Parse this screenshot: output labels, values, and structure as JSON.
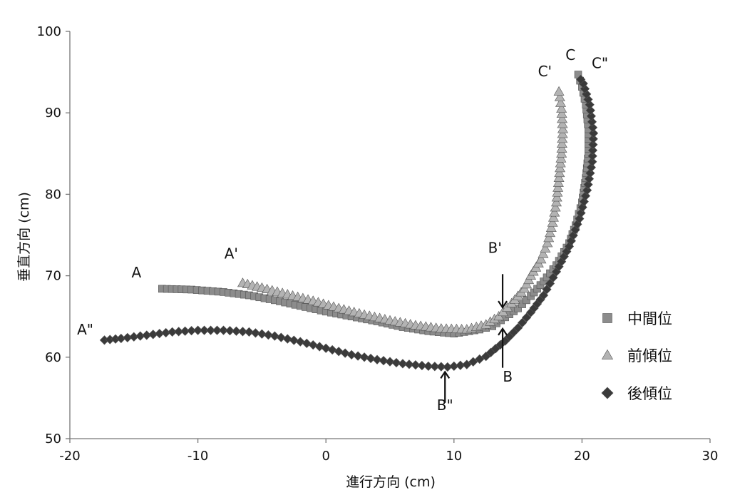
{
  "chart_data": {
    "type": "scatter",
    "title": "",
    "xlabel": "進行方向 (cm)",
    "ylabel": "垂直方向 (cm)",
    "xlim": [
      -20,
      30
    ],
    "ylim": [
      50,
      100
    ],
    "xticks": [
      "-20",
      "-10",
      "0",
      "10",
      "20",
      "30"
    ],
    "yticks": [
      "50",
      "60",
      "70",
      "80",
      "90",
      "100"
    ],
    "grid": false,
    "legend_position": "right",
    "series": [
      {
        "name": "中間位",
        "marker": "square",
        "color": "#8c8c8c",
        "points": [
          [
            -12.8,
            68.4
          ],
          [
            -10.5,
            68.3
          ],
          [
            -8.0,
            68.0
          ],
          [
            -6.0,
            67.6
          ],
          [
            -4.0,
            67.0
          ],
          [
            -2.0,
            66.3
          ],
          [
            0.0,
            65.6
          ],
          [
            2.0,
            65.0
          ],
          [
            4.0,
            64.4
          ],
          [
            6.0,
            63.7
          ],
          [
            8.0,
            63.2
          ],
          [
            10.0,
            62.9
          ],
          [
            12.0,
            63.4
          ],
          [
            13.0,
            63.8
          ],
          [
            14.0,
            64.9
          ],
          [
            15.0,
            66.0
          ],
          [
            16.0,
            67.5
          ],
          [
            17.0,
            69.3
          ],
          [
            18.0,
            71.3
          ],
          [
            19.0,
            74.0
          ],
          [
            19.5,
            76.2
          ],
          [
            20.0,
            79.0
          ],
          [
            20.3,
            82.0
          ],
          [
            20.5,
            85.0
          ],
          [
            20.5,
            88.0
          ],
          [
            20.3,
            91.0
          ],
          [
            20.0,
            93.2
          ],
          [
            19.7,
            94.7
          ]
        ]
      },
      {
        "name": "前傾位",
        "marker": "triangle",
        "color": "#b3b3b3",
        "points": [
          [
            -6.5,
            69.1
          ],
          [
            -5.0,
            68.5
          ],
          [
            -3.0,
            67.7
          ],
          [
            -1.0,
            66.9
          ],
          [
            1.0,
            66.0
          ],
          [
            3.0,
            65.2
          ],
          [
            5.0,
            64.5
          ],
          [
            7.0,
            63.9
          ],
          [
            9.0,
            63.5
          ],
          [
            11.0,
            63.4
          ],
          [
            12.5,
            64.0
          ],
          [
            13.5,
            65.0
          ],
          [
            14.5,
            66.6
          ],
          [
            15.5,
            68.4
          ],
          [
            16.0,
            70.0
          ],
          [
            16.8,
            72.0
          ],
          [
            17.3,
            74.0
          ],
          [
            17.7,
            76.5
          ],
          [
            18.0,
            79.0
          ],
          [
            18.2,
            82.0
          ],
          [
            18.4,
            85.0
          ],
          [
            18.5,
            88.0
          ],
          [
            18.4,
            90.5
          ],
          [
            18.2,
            92.6
          ]
        ]
      },
      {
        "name": "後傾位",
        "marker": "diamond",
        "color": "#3a3a3a",
        "points": [
          [
            -17.3,
            62.1
          ],
          [
            -16.0,
            62.3
          ],
          [
            -14.0,
            62.7
          ],
          [
            -12.0,
            63.1
          ],
          [
            -10.0,
            63.3
          ],
          [
            -8.0,
            63.3
          ],
          [
            -6.0,
            63.1
          ],
          [
            -4.0,
            62.6
          ],
          [
            -2.0,
            61.9
          ],
          [
            0.0,
            61.1
          ],
          [
            2.0,
            60.3
          ],
          [
            4.0,
            59.7
          ],
          [
            6.0,
            59.2
          ],
          [
            8.0,
            58.9
          ],
          [
            9.5,
            58.8
          ],
          [
            11.0,
            59.1
          ],
          [
            12.5,
            60.1
          ],
          [
            14.0,
            62.0
          ],
          [
            15.0,
            63.6
          ],
          [
            16.0,
            65.5
          ],
          [
            17.0,
            67.6
          ],
          [
            18.0,
            70.5
          ],
          [
            19.0,
            73.6
          ],
          [
            19.8,
            77.0
          ],
          [
            20.4,
            80.5
          ],
          [
            20.8,
            84.0
          ],
          [
            20.9,
            87.5
          ],
          [
            20.6,
            91.0
          ],
          [
            20.1,
            93.6
          ],
          [
            19.9,
            94.1
          ]
        ]
      }
    ],
    "annotations": [
      {
        "label": "A",
        "x": -14.8,
        "y": 69.8
      },
      {
        "label": "A'",
        "x": -7.4,
        "y": 72.1
      },
      {
        "label": "A\"",
        "x": -18.8,
        "y": 62.8
      },
      {
        "label": "B'",
        "x": 13.2,
        "y": 72.8
      },
      {
        "label": "B",
        "x": 14.2,
        "y": 57.0
      },
      {
        "label": "B\"",
        "x": 9.3,
        "y": 53.5
      },
      {
        "label": "C",
        "x": 19.1,
        "y": 96.5
      },
      {
        "label": "C'",
        "x": 17.1,
        "y": 94.5
      },
      {
        "label": "C\"",
        "x": 21.4,
        "y": 95.5
      }
    ],
    "arrows": [
      {
        "name": "B'",
        "from": [
          13.8,
          70.2
        ],
        "to": [
          13.8,
          66.1
        ]
      },
      {
        "name": "B",
        "from": [
          13.8,
          58.7
        ],
        "to": [
          13.8,
          63.5
        ]
      },
      {
        "name": "B\"",
        "from": [
          9.3,
          54.4
        ],
        "to": [
          9.3,
          58.2
        ]
      }
    ]
  }
}
